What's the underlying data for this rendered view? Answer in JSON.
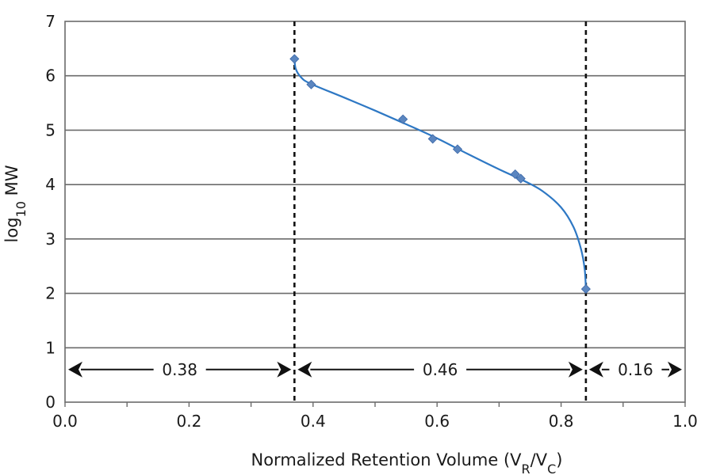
{
  "chart_data": {
    "type": "scatter",
    "title": "",
    "xlabel": {
      "main": "Normalized Retention Volume (V",
      "sub1": "R",
      "mid": "/V",
      "sub2": "C",
      "end": ")"
    },
    "ylabel": {
      "main": "log",
      "sub": "10",
      "end": " MW"
    },
    "xlim": [
      0.0,
      1.0
    ],
    "ylim": [
      0,
      7
    ],
    "x_ticks": [
      "0.0",
      "0.2",
      "0.4",
      "0.6",
      "0.8",
      "1.0"
    ],
    "y_ticks": [
      "0",
      "1",
      "2",
      "3",
      "4",
      "5",
      "6",
      "7"
    ],
    "grid": "horizontal",
    "series": [
      {
        "points": [
          {
            "x": 0.37,
            "y": 6.31
          },
          {
            "x": 0.397,
            "y": 5.84
          },
          {
            "x": 0.545,
            "y": 5.2
          },
          {
            "x": 0.593,
            "y": 4.84
          },
          {
            "x": 0.633,
            "y": 4.65
          },
          {
            "x": 0.726,
            "y": 4.19
          },
          {
            "x": 0.735,
            "y": 4.11
          },
          {
            "x": 0.84,
            "y": 2.08
          }
        ],
        "fit_curve": [
          {
            "x": 0.37,
            "y": 6.31
          },
          {
            "x": 0.372,
            "y": 6.13
          },
          {
            "x": 0.38,
            "y": 5.98
          },
          {
            "x": 0.395,
            "y": 5.86
          },
          {
            "x": 0.45,
            "y": 5.6
          },
          {
            "x": 0.5,
            "y": 5.36
          },
          {
            "x": 0.55,
            "y": 5.11
          },
          {
            "x": 0.6,
            "y": 4.85
          },
          {
            "x": 0.65,
            "y": 4.56
          },
          {
            "x": 0.7,
            "y": 4.28
          },
          {
            "x": 0.74,
            "y": 4.07
          },
          {
            "x": 0.77,
            "y": 3.88
          },
          {
            "x": 0.8,
            "y": 3.58
          },
          {
            "x": 0.82,
            "y": 3.22
          },
          {
            "x": 0.832,
            "y": 2.82
          },
          {
            "x": 0.838,
            "y": 2.45
          },
          {
            "x": 0.84,
            "y": 2.08
          }
        ]
      }
    ],
    "vertical_dashed_lines": [
      0.37,
      0.84
    ],
    "range_annotations": {
      "y": 0.6,
      "segments": [
        {
          "label": "0.38",
          "x_start": 0.0,
          "x_end": 0.37
        },
        {
          "label": "0.46",
          "x_start": 0.37,
          "x_end": 0.84
        },
        {
          "label": "0.16",
          "x_start": 0.84,
          "x_end": 1.0
        }
      ]
    }
  }
}
